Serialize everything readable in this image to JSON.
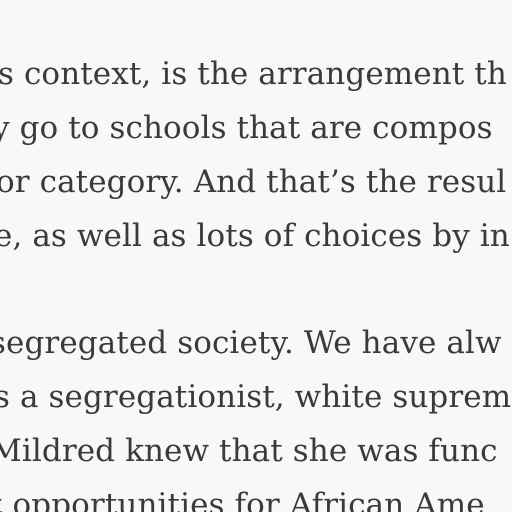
{
  "article": {
    "paragraph_1": [
      "s context, is the arrangement th",
      "y go to schools that are compos",
      "or category. And that’s the resul",
      "e, as well as lots of choices by in"
    ],
    "paragraph_2": [
      "segregated society. We have alw",
      "s a segregationist, white suprem",
      "Mildred knew that she was func",
      "t opportunities for African Ame"
    ]
  },
  "colors": {
    "background": "#f9f8f6",
    "text": "#3a3a3a"
  }
}
